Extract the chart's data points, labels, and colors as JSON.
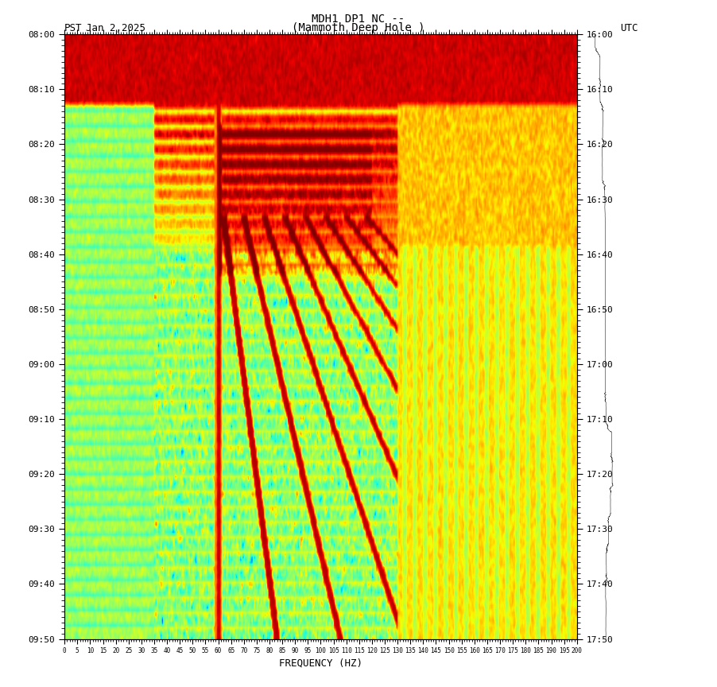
{
  "title_line1": "MDH1 DP1 NC --",
  "title_line2": "(Mammoth Deep Hole )",
  "label_left": "PST",
  "label_right": "UTC",
  "date": "Jan 2,2025",
  "xlabel": "FREQUENCY (HZ)",
  "yticks_left": [
    "08:00",
    "08:10",
    "08:20",
    "08:30",
    "08:40",
    "08:50",
    "09:00",
    "09:10",
    "09:20",
    "09:30",
    "09:40",
    "09:50"
  ],
  "yticks_right": [
    "16:00",
    "16:10",
    "16:20",
    "16:30",
    "16:40",
    "16:50",
    "17:00",
    "17:10",
    "17:20",
    "17:30",
    "17:40",
    "17:50"
  ],
  "xticks": [
    0,
    5,
    10,
    15,
    20,
    25,
    30,
    35,
    40,
    45,
    50,
    55,
    60,
    65,
    70,
    75,
    80,
    85,
    90,
    95,
    100,
    105,
    110,
    115,
    120,
    125,
    130,
    135,
    140,
    145,
    150,
    155,
    160,
    165,
    170,
    175,
    180,
    185,
    190,
    195,
    200
  ],
  "xmin": 0,
  "xmax": 200,
  "n_time": 240,
  "n_freq": 400,
  "colormap": "jet",
  "background_color": "#ffffff",
  "fig_width": 9.02,
  "fig_height": 8.64,
  "dpi": 100,
  "seed": 42
}
